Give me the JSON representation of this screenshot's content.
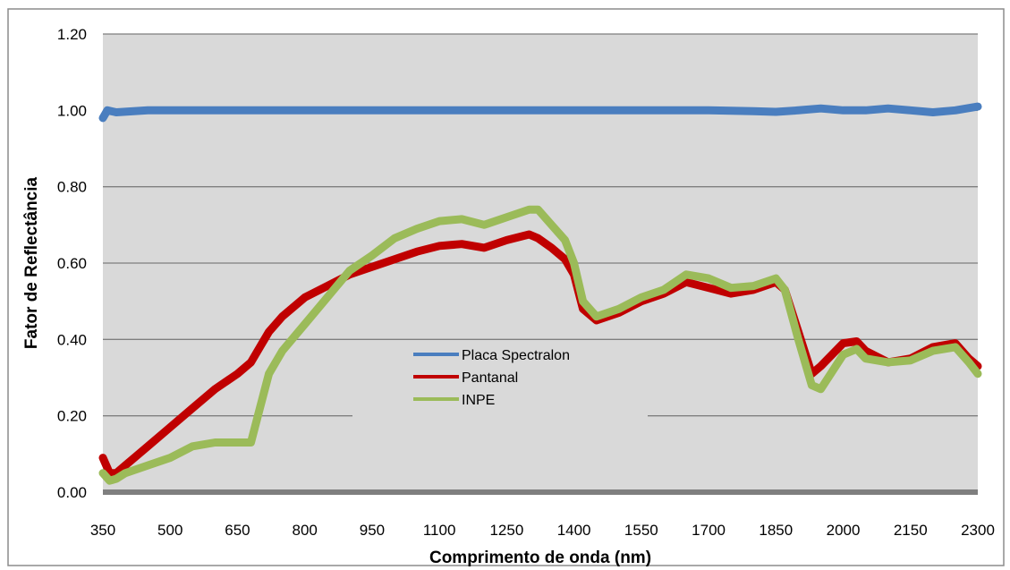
{
  "chart_data": {
    "type": "line",
    "title": "",
    "xlabel": "Comprimento de onda (nm)",
    "ylabel": "Fator de Reflectância",
    "xlim": [
      350,
      2300
    ],
    "ylim": [
      0,
      1.2
    ],
    "x_ticks": [
      "350",
      "500",
      "650",
      "800",
      "950",
      "1100",
      "1250",
      "1400",
      "1550",
      "1700",
      "1850",
      "2000",
      "2150",
      "2300"
    ],
    "y_ticks": [
      "0.00",
      "0.20",
      "0.40",
      "0.60",
      "0.80",
      "1.00",
      "1.20"
    ],
    "grid": "horizontal",
    "legend_position": "center",
    "series": [
      {
        "name": "Placa Spectralon",
        "color": "#4a7ebf",
        "x": [
          350,
          360,
          380,
          450,
          600,
          800,
          1000,
          1200,
          1400,
          1550,
          1700,
          1800,
          1850,
          1900,
          1950,
          2000,
          2050,
          2100,
          2150,
          2200,
          2250,
          2300
        ],
        "y": [
          0.98,
          1.0,
          0.995,
          1.0,
          1.0,
          1.0,
          1.0,
          1.0,
          1.0,
          1.0,
          1.0,
          0.998,
          0.996,
          1.0,
          1.005,
          1.0,
          1.0,
          1.005,
          1.0,
          0.995,
          1.0,
          1.01
        ]
      },
      {
        "name": "Pantanal",
        "color": "#c00000",
        "x": [
          350,
          365,
          380,
          400,
          450,
          500,
          550,
          600,
          650,
          680,
          700,
          720,
          750,
          800,
          850,
          900,
          950,
          1000,
          1050,
          1100,
          1150,
          1200,
          1250,
          1300,
          1320,
          1350,
          1380,
          1400,
          1420,
          1450,
          1500,
          1550,
          1600,
          1650,
          1700,
          1750,
          1800,
          1850,
          1870,
          1900,
          1930,
          1950,
          2000,
          2030,
          2050,
          2100,
          2150,
          2200,
          2250,
          2280,
          2300
        ],
        "y": [
          0.09,
          0.05,
          0.05,
          0.07,
          0.12,
          0.17,
          0.22,
          0.27,
          0.31,
          0.34,
          0.38,
          0.42,
          0.46,
          0.51,
          0.54,
          0.57,
          0.59,
          0.61,
          0.63,
          0.645,
          0.65,
          0.64,
          0.66,
          0.675,
          0.665,
          0.64,
          0.61,
          0.57,
          0.48,
          0.45,
          0.47,
          0.5,
          0.52,
          0.55,
          0.535,
          0.52,
          0.53,
          0.55,
          0.53,
          0.42,
          0.31,
          0.33,
          0.39,
          0.395,
          0.37,
          0.34,
          0.35,
          0.38,
          0.39,
          0.35,
          0.33
        ]
      },
      {
        "name": "INPE",
        "color": "#9bbb59",
        "x": [
          350,
          365,
          380,
          400,
          450,
          500,
          550,
          600,
          650,
          680,
          700,
          720,
          750,
          800,
          850,
          900,
          950,
          1000,
          1050,
          1100,
          1150,
          1200,
          1250,
          1300,
          1320,
          1350,
          1380,
          1400,
          1420,
          1450,
          1500,
          1550,
          1600,
          1650,
          1700,
          1750,
          1800,
          1850,
          1870,
          1900,
          1930,
          1950,
          2000,
          2030,
          2050,
          2100,
          2150,
          2200,
          2250,
          2280,
          2300
        ],
        "y": [
          0.05,
          0.03,
          0.035,
          0.05,
          0.07,
          0.09,
          0.12,
          0.13,
          0.13,
          0.13,
          0.22,
          0.31,
          0.37,
          0.44,
          0.51,
          0.58,
          0.62,
          0.665,
          0.69,
          0.71,
          0.715,
          0.7,
          0.72,
          0.74,
          0.74,
          0.7,
          0.66,
          0.6,
          0.5,
          0.46,
          0.48,
          0.51,
          0.53,
          0.57,
          0.56,
          0.535,
          0.54,
          0.56,
          0.53,
          0.4,
          0.28,
          0.27,
          0.36,
          0.375,
          0.35,
          0.34,
          0.345,
          0.37,
          0.38,
          0.34,
          0.31
        ]
      }
    ]
  }
}
